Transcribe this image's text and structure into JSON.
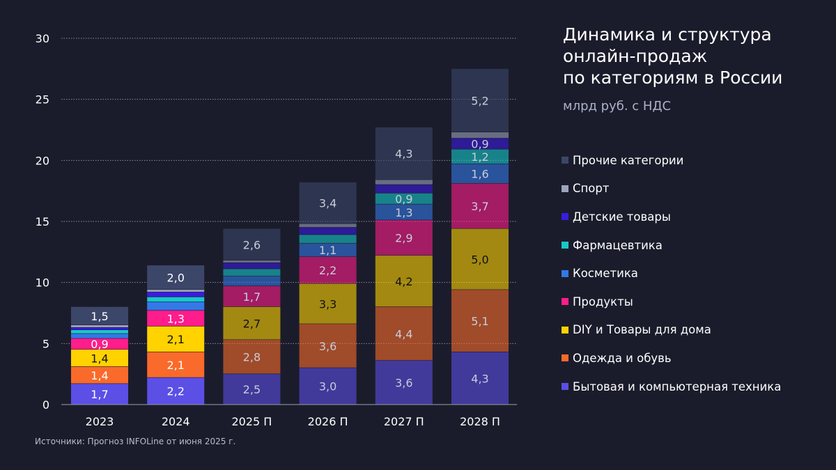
{
  "chart_data": {
    "type": "bar",
    "stacked": true,
    "title_lines": [
      "Динамика и структура",
      "онлайн-продаж",
      "по категориям в России"
    ],
    "subtitle": "млрд руб. с НДС",
    "categories": [
      "2023",
      "2024",
      "2025 П",
      "2026 П",
      "2027 П",
      "2028 П"
    ],
    "ylim": [
      0,
      30
    ],
    "yticks": [
      0,
      5,
      10,
      15,
      20,
      25,
      30
    ],
    "grid": true,
    "legend_position": "right",
    "series": [
      {
        "name": "Бытовая и компьютерная техника",
        "color": "#5b4fe6",
        "values": [
          1.7,
          2.2,
          2.5,
          3.0,
          3.6,
          4.3
        ],
        "labels": [
          "1,7",
          "2,2",
          "2,5",
          "3,0",
          "3,6",
          "4,3"
        ]
      },
      {
        "name": "Одежда и обувь",
        "color": "#fa6a2a",
        "values": [
          1.4,
          2.1,
          2.8,
          3.6,
          4.4,
          5.1
        ],
        "labels": [
          "1,4",
          "2,1",
          "2,8",
          "3,6",
          "4,4",
          "5,1"
        ]
      },
      {
        "name": "DIY и Товары для дома",
        "color": "#ffd200",
        "values": [
          1.4,
          2.1,
          2.7,
          3.3,
          4.2,
          5.0
        ],
        "labels": [
          "1,4",
          "2,1",
          "2,7",
          "3,3",
          "4,2",
          "5,0"
        ]
      },
      {
        "name": "Продукты",
        "color": "#ff1c8b",
        "values": [
          0.9,
          1.3,
          1.7,
          2.2,
          2.9,
          3.7
        ],
        "labels": [
          "0,9",
          "1,3",
          "1,7",
          "2,2",
          "2,9",
          "3,7"
        ]
      },
      {
        "name": "Косметика",
        "color": "#3378e6",
        "values": [
          0.4,
          0.7,
          0.8,
          1.1,
          1.3,
          1.6
        ],
        "labels": [
          "",
          "",
          "",
          "1,1",
          "1,3",
          "1,6"
        ]
      },
      {
        "name": "Фармацевтика",
        "color": "#18c7c9",
        "values": [
          0.3,
          0.4,
          0.6,
          0.7,
          0.9,
          1.2
        ],
        "labels": [
          "",
          "",
          "",
          "",
          "0,9",
          "1,2"
        ]
      },
      {
        "name": "Детские товары",
        "color": "#3b1be0",
        "values": [
          0.2,
          0.4,
          0.5,
          0.6,
          0.7,
          0.9
        ],
        "labels": [
          "",
          "",
          "",
          "",
          "",
          "0,9"
        ]
      },
      {
        "name": "Спорт",
        "color": "#9ca3bc",
        "values": [
          0.2,
          0.2,
          0.2,
          0.3,
          0.4,
          0.5
        ],
        "labels": [
          "",
          "",
          "",
          "",
          "",
          ""
        ]
      },
      {
        "name": "Прочие категории",
        "color": "#3c4669",
        "values": [
          1.5,
          2.0,
          2.6,
          3.4,
          4.3,
          5.2
        ],
        "labels": [
          "1,5",
          "2,0",
          "2,6",
          "3,4",
          "4,3",
          "5,2"
        ]
      }
    ],
    "highlighted_categories": [
      "2023",
      "2024"
    ]
  },
  "source": "Источники: Прогноз INFOLine от июня 2025 г."
}
